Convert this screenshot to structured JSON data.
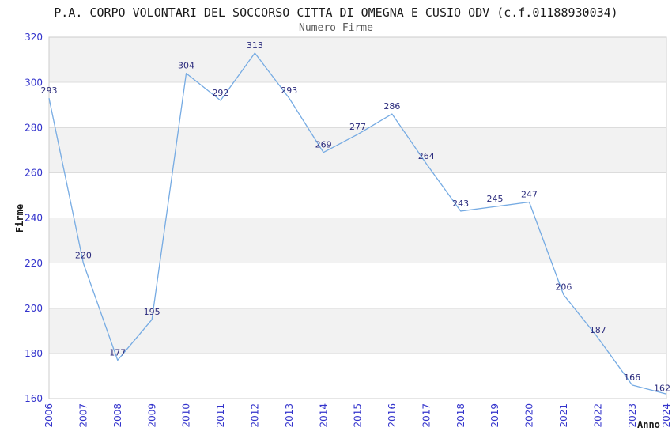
{
  "chart_data": {
    "type": "line",
    "title": "P.A. CORPO VOLONTARI DEL SOCCORSO CITTA DI OMEGNA E CUSIO ODV (c.f.01188930034)",
    "subtitle": "Numero Firme",
    "xlabel": "Anno",
    "ylabel": "Firme",
    "x": [
      "2006",
      "2007",
      "2008",
      "2009",
      "2010",
      "2011",
      "2012",
      "2013",
      "2014",
      "2015",
      "2016",
      "2017",
      "2018",
      "2019",
      "2020",
      "2021",
      "2022",
      "2023",
      "2024"
    ],
    "values": [
      293,
      220,
      177,
      195,
      304,
      292,
      313,
      293,
      269,
      277,
      286,
      264,
      243,
      245,
      247,
      206,
      187,
      166,
      162
    ],
    "ylim": [
      160,
      320
    ],
    "ytick_step": 20,
    "grid": "horizontal",
    "bands": "alternating gray starting from top (320-300 gray)",
    "legend": "none",
    "markers": "none",
    "data_labels": "above each point",
    "x_tick_rotation": -90,
    "colors": {
      "line": "#76abe3",
      "data_label": "#2b2b7d",
      "tick_label": "#3333cc",
      "band": "#f2f2f2",
      "grid_line": "#dcdcdc",
      "plot_border": "#cccccc",
      "title": "#1a1a1a",
      "subtitle": "#595959",
      "axis_title": "#1a1a1a",
      "background": "#ffffff"
    }
  }
}
